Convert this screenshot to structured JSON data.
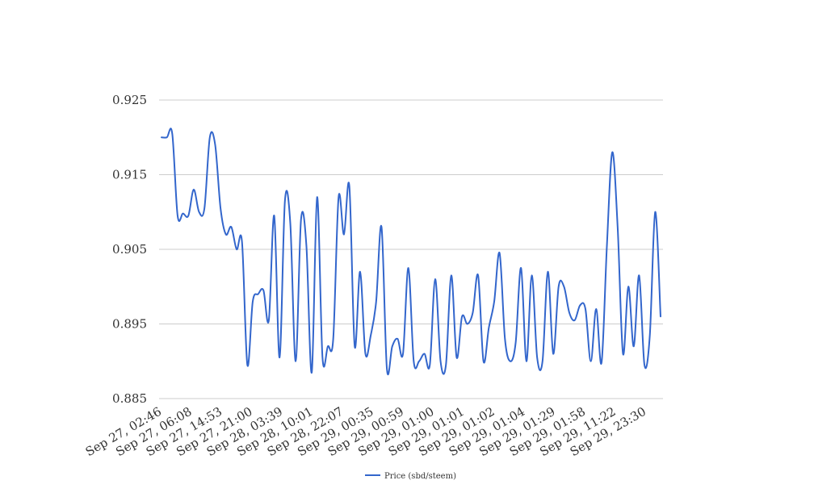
{
  "chart_data": {
    "type": "line",
    "title": "",
    "xlabel": "",
    "ylabel": "",
    "ylim": [
      0.885,
      0.925
    ],
    "yticks": [
      "0.925",
      "0.915",
      "0.905",
      "0.895",
      "0.885"
    ],
    "ytick_values": [
      0.925,
      0.915,
      0.905,
      0.895,
      0.885
    ],
    "xticks": [
      "Sep 27, 02:46",
      "Sep 27, 06:08",
      "Sep 27, 14:53",
      "Sep 27, 21:00",
      "Sep 28, 03:39",
      "Sep 28, 10:01",
      "Sep 28, 22:07",
      "Sep 29, 00:35",
      "Sep 29, 00:59",
      "Sep 29, 01:00",
      "Sep 29, 01:01",
      "Sep 29, 01:02",
      "Sep 29, 01:04",
      "Sep 29, 01:29",
      "Sep 29, 01:58",
      "Sep 29, 11:22",
      "Sep 29, 23:30"
    ],
    "grid": true,
    "legend_position": "bottom",
    "colors": {
      "series": "#3366cc",
      "grid": "#cccccc"
    },
    "series": [
      {
        "name": "Price (sbd/steem)",
        "values": [
          0.92,
          0.92,
          0.9205,
          0.9095,
          0.9098,
          0.9095,
          0.913,
          0.91,
          0.9105,
          0.92,
          0.919,
          0.9105,
          0.907,
          0.908,
          0.905,
          0.906,
          0.8895,
          0.898,
          0.899,
          0.8995,
          0.8955,
          0.9095,
          0.8905,
          0.9115,
          0.9085,
          0.89,
          0.909,
          0.9055,
          0.8885,
          0.912,
          0.8905,
          0.892,
          0.893,
          0.912,
          0.907,
          0.9135,
          0.892,
          0.902,
          0.891,
          0.8935,
          0.898,
          0.908,
          0.889,
          0.892,
          0.893,
          0.891,
          0.9025,
          0.89,
          0.89,
          0.891,
          0.8895,
          0.901,
          0.89,
          0.8895,
          0.9015,
          0.8905,
          0.896,
          0.895,
          0.8965,
          0.9015,
          0.89,
          0.8945,
          0.898,
          0.9045,
          0.893,
          0.89,
          0.8925,
          0.9025,
          0.89,
          0.9015,
          0.8905,
          0.89,
          0.902,
          0.891,
          0.9,
          0.9,
          0.8965,
          0.8955,
          0.8975,
          0.897,
          0.89,
          0.897,
          0.8898,
          0.9055,
          0.918,
          0.908,
          0.891,
          0.9,
          0.892,
          0.9015,
          0.8895,
          0.8935,
          0.91,
          0.896
        ]
      }
    ]
  }
}
